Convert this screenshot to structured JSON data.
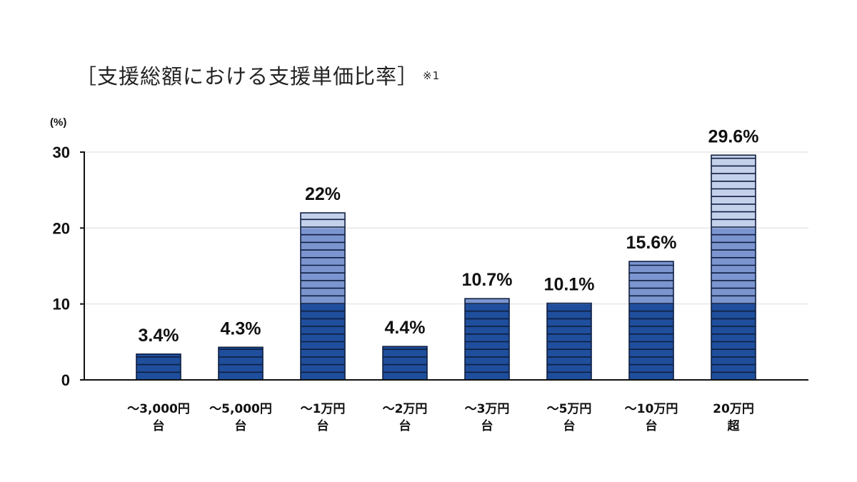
{
  "title_text": "［支援総額における支援単価比率］",
  "title_note": "※1",
  "colors": {
    "dark": "#1f4e9c",
    "mid": "#7b95cf",
    "light": "#c5d0eb",
    "stripe": "#0f1f40",
    "axis": "#111111",
    "grid": "#e6e6e6"
  },
  "chart_data": {
    "type": "bar",
    "title": "［支援総額における支援単価比率］※1",
    "ylabel": "(%)",
    "ylim": [
      0,
      30
    ],
    "yticks": [
      "0",
      "10",
      "20",
      "30"
    ],
    "grid": true,
    "categories": [
      [
        "～3,000円",
        "台"
      ],
      [
        "～5,000円",
        "台"
      ],
      [
        "～1万円",
        "台"
      ],
      [
        "～2万円",
        "台"
      ],
      [
        "～3万円",
        "台"
      ],
      [
        "～5万円",
        "台"
      ],
      [
        "～10万円",
        "台"
      ],
      [
        "20万円",
        "超"
      ]
    ],
    "values": [
      3.4,
      4.3,
      22,
      4.4,
      10.7,
      10.1,
      15.6,
      29.6
    ],
    "value_labels": [
      "3.4%",
      "4.3%",
      "22%",
      "4.4%",
      "10.7%",
      "10.1%",
      "15.6%",
      "29.6%"
    ]
  }
}
